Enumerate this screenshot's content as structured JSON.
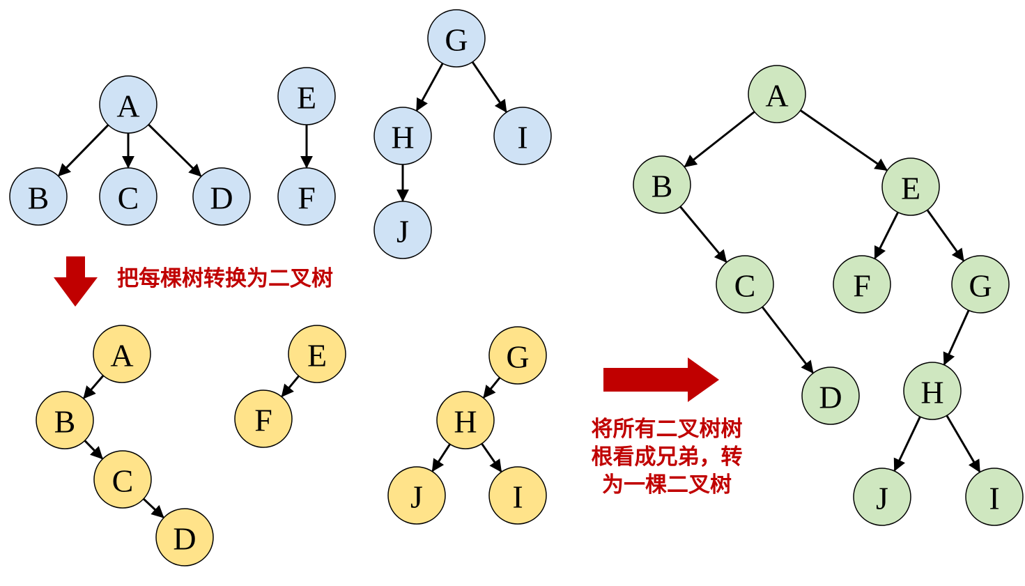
{
  "colors": {
    "forest_fill": "#cfe2f5",
    "converted_fill": "#ffe38a",
    "merged_fill": "#cfe7c0",
    "node_stroke": "#000000",
    "arrow_red": "#c00000"
  },
  "captions": {
    "step1": "把每棵树转换为二叉树",
    "step2_line1": "将所有二叉树树",
    "step2_line2": "根看成兄弟，转",
    "step2_line3": "为一棵二叉树"
  },
  "groups": [
    {
      "id": "forest",
      "fill_key": "forest_fill",
      "nodes": [
        {
          "id": "A",
          "label": "A"
        },
        {
          "id": "B",
          "label": "B"
        },
        {
          "id": "C",
          "label": "C"
        },
        {
          "id": "D",
          "label": "D"
        },
        {
          "id": "E",
          "label": "E"
        },
        {
          "id": "F",
          "label": "F"
        },
        {
          "id": "G",
          "label": "G"
        },
        {
          "id": "H",
          "label": "H"
        },
        {
          "id": "I",
          "label": "I"
        },
        {
          "id": "J",
          "label": "J"
        }
      ],
      "edges": [
        [
          "A",
          "B"
        ],
        [
          "A",
          "C"
        ],
        [
          "A",
          "D"
        ],
        [
          "E",
          "F"
        ],
        [
          "G",
          "H"
        ],
        [
          "G",
          "I"
        ],
        [
          "H",
          "J"
        ]
      ]
    },
    {
      "id": "converted",
      "fill_key": "converted_fill",
      "nodes": [
        {
          "id": "A",
          "label": "A"
        },
        {
          "id": "B",
          "label": "B"
        },
        {
          "id": "C",
          "label": "C"
        },
        {
          "id": "D",
          "label": "D"
        },
        {
          "id": "E",
          "label": "E"
        },
        {
          "id": "F",
          "label": "F"
        },
        {
          "id": "G",
          "label": "G"
        },
        {
          "id": "H",
          "label": "H"
        },
        {
          "id": "J",
          "label": "J"
        },
        {
          "id": "I",
          "label": "I"
        }
      ],
      "edges": [
        [
          "A",
          "B"
        ],
        [
          "B",
          "C"
        ],
        [
          "C",
          "D"
        ],
        [
          "E",
          "F"
        ],
        [
          "G",
          "H"
        ],
        [
          "H",
          "J"
        ],
        [
          "H",
          "I"
        ]
      ]
    },
    {
      "id": "merged",
      "fill_key": "merged_fill",
      "nodes": [
        {
          "id": "A",
          "label": "A"
        },
        {
          "id": "B",
          "label": "B"
        },
        {
          "id": "E",
          "label": "E"
        },
        {
          "id": "C",
          "label": "C"
        },
        {
          "id": "F",
          "label": "F"
        },
        {
          "id": "G",
          "label": "G"
        },
        {
          "id": "D",
          "label": "D"
        },
        {
          "id": "H",
          "label": "H"
        },
        {
          "id": "J",
          "label": "J"
        },
        {
          "id": "I",
          "label": "I"
        }
      ],
      "edges": [
        [
          "A",
          "B"
        ],
        [
          "A",
          "E"
        ],
        [
          "B",
          "C"
        ],
        [
          "C",
          "D"
        ],
        [
          "E",
          "F"
        ],
        [
          "E",
          "G"
        ],
        [
          "G",
          "H"
        ],
        [
          "H",
          "J"
        ],
        [
          "H",
          "I"
        ]
      ]
    }
  ]
}
